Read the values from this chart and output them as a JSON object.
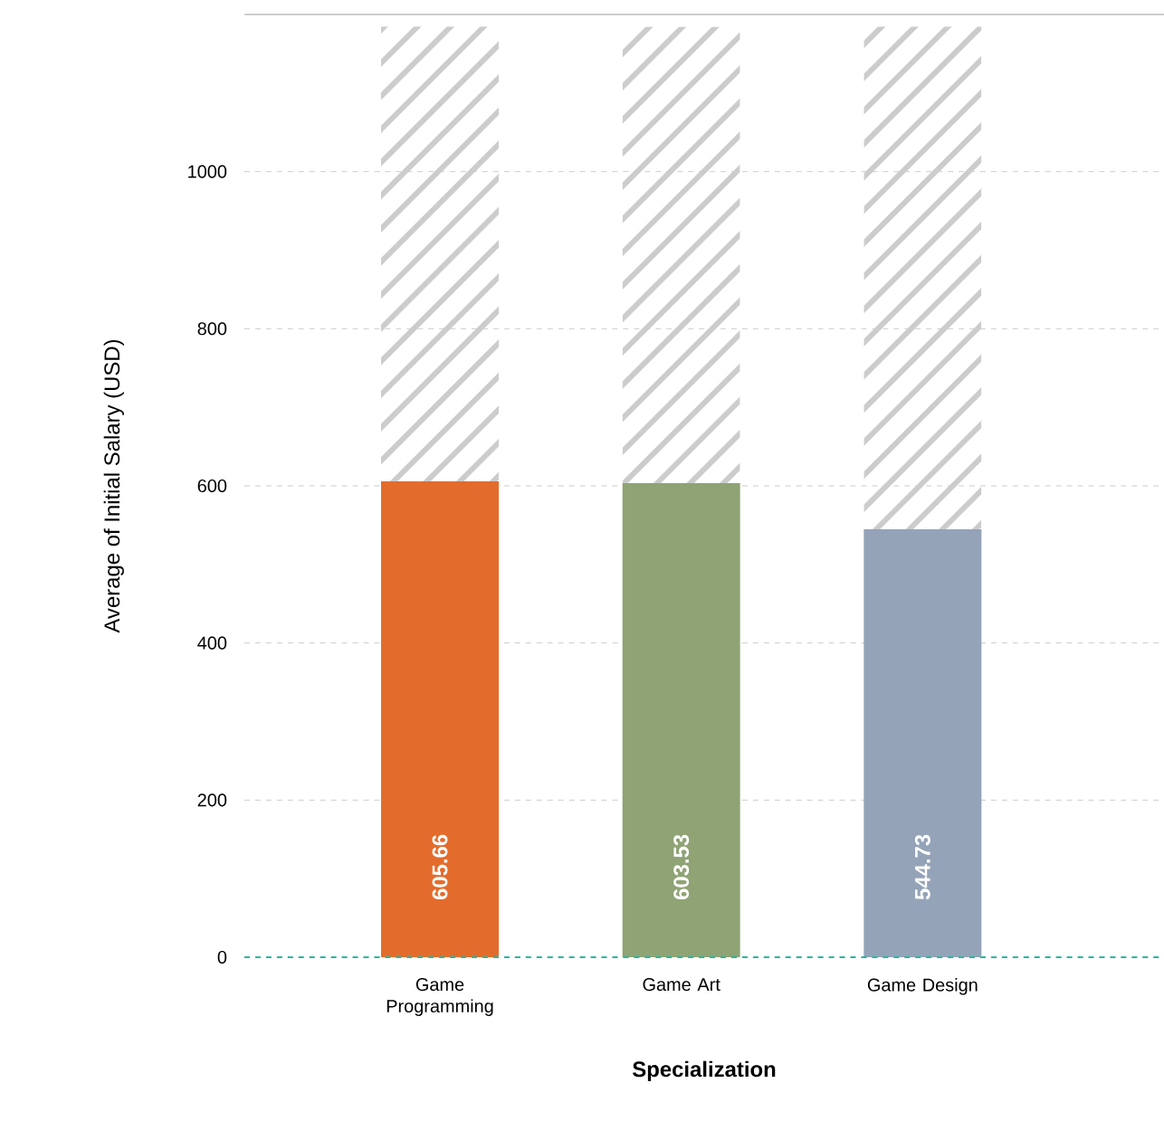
{
  "chart_data": {
    "type": "bar",
    "xlabel": "Specialization",
    "ylabel": "Average of Initial Salary (USD)",
    "categories": [
      "Game Programming",
      "Game Art",
      "Game Design"
    ],
    "stacked": true,
    "series": [
      {
        "colors": [
          "#e36c2c",
          "#8fa375",
          "#94a3b8"
        ],
        "values": [
          605.66,
          603.53,
          544.73
        ],
        "value_labels": [
          "605.66",
          "603.53",
          "544.73"
        ]
      },
      {
        "color": "#cccccc",
        "values": [
          579,
          581,
          640
        ]
      }
    ],
    "ylim": [
      0,
      1200
    ],
    "yticks": [
      0,
      200,
      400,
      600,
      800,
      1000
    ],
    "grid": "y",
    "ref_lines": [
      {
        "axis": "y",
        "value": 0,
        "color": "#2bb5a0",
        "line_style": "dashed"
      }
    ]
  }
}
